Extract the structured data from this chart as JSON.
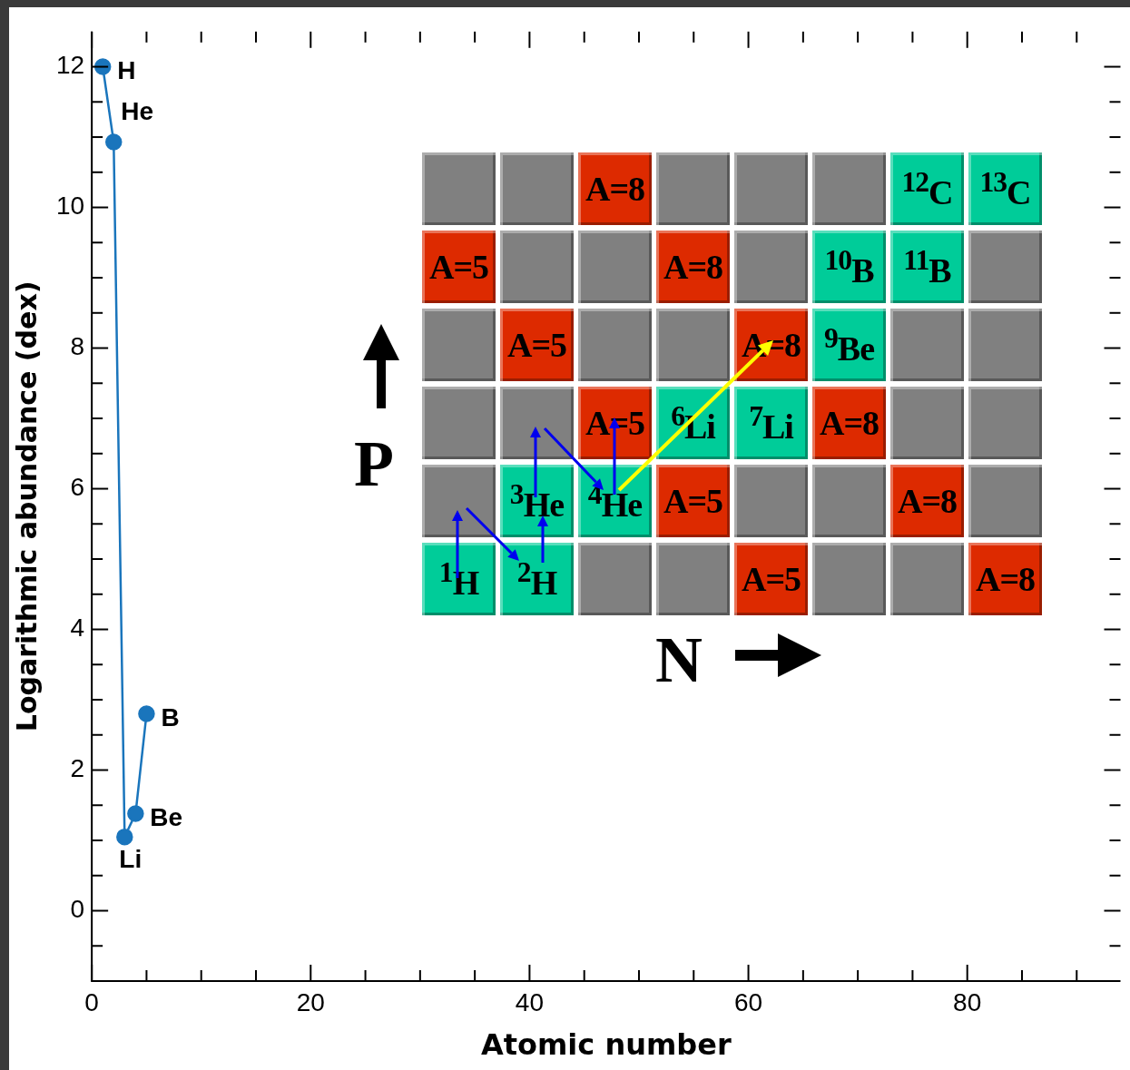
{
  "chart_data": {
    "type": "line",
    "xlabel": "Atomic number",
    "ylabel": "Logarithmic abundance (dex)",
    "x": [
      1,
      2,
      3,
      4,
      5
    ],
    "series": [
      {
        "color": "#1a75bc",
        "values": [
          12.0,
          10.93,
          1.05,
          1.38,
          2.8
        ]
      }
    ],
    "marker": "circle",
    "line_style": "solid",
    "grid": false,
    "legend": false,
    "xlim": [
      0,
      94
    ],
    "xticks": [
      0,
      {
        "value": 5,
        "label": null
      },
      {
        "value": 10,
        "label": null
      },
      {
        "value": 15,
        "label": null
      },
      20,
      {
        "value": 25,
        "label": null
      },
      {
        "value": 30,
        "label": null
      },
      {
        "value": 35,
        "label": null
      },
      40,
      {
        "value": 45,
        "label": null
      },
      {
        "value": 50,
        "label": null
      },
      {
        "value": 55,
        "label": null
      },
      60,
      {
        "value": 65,
        "label": null
      },
      {
        "value": 70,
        "label": null
      },
      {
        "value": 75,
        "label": null
      },
      80,
      {
        "value": 85,
        "label": null
      },
      {
        "value": 90,
        "label": null
      }
    ],
    "ylim": [
      -1,
      12.5
    ],
    "yticks": [
      {
        "value": -0.5,
        "label": null
      },
      0,
      {
        "value": 0.5,
        "label": null
      },
      {
        "value": 1,
        "label": null
      },
      {
        "value": 1.5,
        "label": null
      },
      2,
      {
        "value": 2.5,
        "label": null
      },
      {
        "value": 3,
        "label": null
      },
      {
        "value": 3.5,
        "label": null
      },
      4,
      {
        "value": 4.5,
        "label": null
      },
      {
        "value": 5,
        "label": null
      },
      {
        "value": 5.5,
        "label": null
      },
      6,
      {
        "value": 6.5,
        "label": null
      },
      {
        "value": 7,
        "label": null
      },
      {
        "value": 7.5,
        "label": null
      },
      8,
      {
        "value": 8.5,
        "label": null
      },
      {
        "value": 9,
        "label": null
      },
      {
        "value": 9.5,
        "label": null
      },
      10,
      {
        "value": 10.5,
        "label": null
      },
      {
        "value": 11,
        "label": null
      },
      {
        "value": 11.5,
        "label": null
      },
      12
    ],
    "annotations": [
      {
        "text": "H",
        "x": 1,
        "y": 12.0
      },
      {
        "text": "He",
        "x": 2,
        "y": 10.93
      },
      {
        "text": "Li",
        "x": 3,
        "y": 1.05
      },
      {
        "text": "Be",
        "x": 4,
        "y": 1.38
      },
      {
        "text": "B",
        "x": 5,
        "y": 2.8
      },
      "A=8",
      "$^{12}$C",
      "$^{13}$C",
      "A=5",
      "A=8",
      "$^{10}$B",
      "$^{11}$B",
      "A=5",
      "A=8",
      "$^{9}$Be",
      "A=5",
      "$^{6}$Li",
      "$^{7}$Li",
      "A=8",
      "$^{3}$He",
      "$^{4}$He",
      "A=5",
      "A=8",
      "$^{1}$H",
      "$^{2}$H",
      "A=5",
      "A=8",
      "P",
      "N"
    ]
  }
}
